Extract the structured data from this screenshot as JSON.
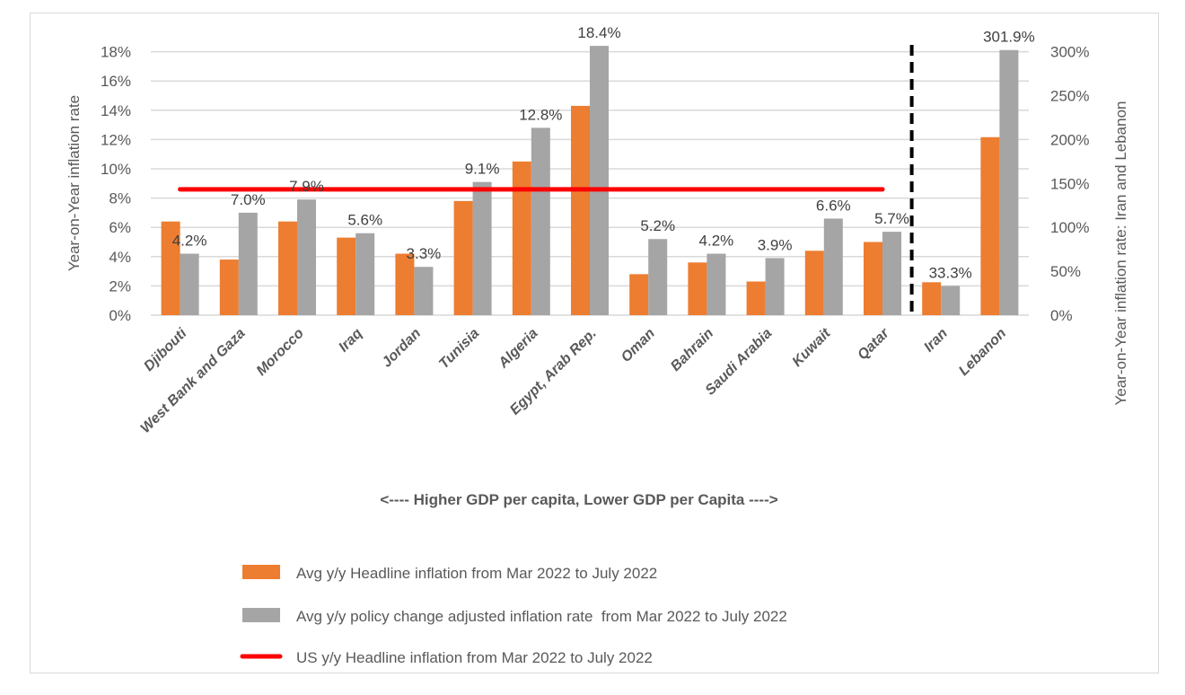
{
  "chart_data": {
    "type": "bar",
    "categories": [
      "Djibouti",
      "West Bank and Gaza",
      "Morocco",
      "Iraq",
      "Jordan",
      "Tunisia",
      "Algeria",
      "Egypt, Arab Rep.",
      "Oman",
      "Bahrain",
      "Saudi Arabia",
      "Kuwait",
      "Qatar",
      "Iran",
      "Lebanon"
    ],
    "secondary_axis_categories": [
      "Iran",
      "Lebanon"
    ],
    "series": [
      {
        "name": "Avg y/y Headline inflation from Mar 2022 to July 2022",
        "type": "bar",
        "color": "#ed7d31",
        "values": [
          6.4,
          3.8,
          6.4,
          5.3,
          4.2,
          7.8,
          10.5,
          14.3,
          2.8,
          3.6,
          2.3,
          4.4,
          5.0,
          37.5,
          202.7
        ]
      },
      {
        "name": "Avg y/y policy change adjusted inflation rate  from Mar 2022 to July 2022",
        "type": "bar",
        "color": "#a5a5a5",
        "values": [
          4.2,
          7.0,
          7.9,
          5.6,
          3.3,
          9.1,
          12.8,
          18.4,
          5.2,
          4.2,
          3.9,
          6.6,
          5.7,
          33.3,
          301.9
        ],
        "data_labels": [
          "4.2%",
          "7.0%",
          "7.9%",
          "5.6%",
          "3.3%",
          "9.1%",
          "12.8%",
          "18.4%",
          "5.2%",
          "4.2%",
          "3.9%",
          "6.6%",
          "5.7%",
          "33.3%",
          "301.9%"
        ]
      },
      {
        "name": "US y/y Headline inflation from Mar 2022 to July 2022",
        "type": "line",
        "color": "#ff0000",
        "value": 8.6,
        "span": [
          "Djibouti",
          "Qatar"
        ]
      }
    ],
    "ylabel": "Year-on-Year inflation rate",
    "ylim": [
      0,
      18
    ],
    "yticks": [
      "0%",
      "2%",
      "4%",
      "6%",
      "8%",
      "10%",
      "12%",
      "14%",
      "16%",
      "18%"
    ],
    "y2label": "Year-on-Year inflation rate: Iran and Lebanon",
    "y2lim": [
      0,
      300
    ],
    "y2ticks": [
      "0%",
      "50%",
      "100%",
      "150%",
      "200%",
      "250%",
      "300%"
    ],
    "xlabel": "<---- Higher GDP per capita, Lower GDP per Capita ---->",
    "divider_after": "Qatar",
    "grid": true,
    "legend_position": "bottom"
  }
}
